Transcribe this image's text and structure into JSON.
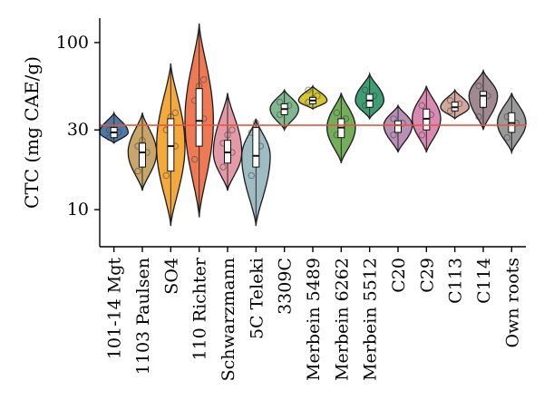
{
  "chart_data": {
    "type": "violin",
    "title": "",
    "xlabel": "",
    "ylabel": "CTC (mg CAE/g)",
    "y_scale": "log",
    "ylim": [
      6,
      140
    ],
    "y_ticks": [
      10,
      30,
      100
    ],
    "reference_line": {
      "value": 32,
      "color": "#e8573b"
    },
    "grid": false,
    "categories": [
      "101-14 Mgt",
      "1103 Paulsen",
      "SO4",
      "110 Richter",
      "Schwarzmann",
      "5C Teleki",
      "3309C",
      "Merbein 5489",
      "Merbein 6262",
      "Merbein 5512",
      "C20",
      "C29",
      "C113",
      "C114",
      "Own roots"
    ],
    "series": [
      {
        "category": "101-14 Mgt",
        "color": "#4e79a7",
        "ymin": 25,
        "ymax": 38,
        "median": 29,
        "q1": 27,
        "q3": 31,
        "points": [
          27,
          28,
          29,
          30,
          31
        ]
      },
      {
        "category": "1103 Paulsen",
        "color": "#c8a66a",
        "ymin": 13,
        "ymax": 38,
        "median": 22,
        "q1": 18,
        "q3": 25,
        "points": [
          17,
          19,
          22,
          24,
          26
        ]
      },
      {
        "category": "SO4",
        "color": "#f3a93b",
        "ymin": 8,
        "ymax": 75,
        "median": 24,
        "q1": 17,
        "q3": 35,
        "points": [
          16,
          18,
          24,
          30,
          36,
          38
        ]
      },
      {
        "category": "110 Richter",
        "color": "#ee7a55",
        "ymin": 9,
        "ymax": 130,
        "median": 34,
        "q1": 24,
        "q3": 53,
        "points": [
          20,
          25,
          35,
          45,
          55,
          60
        ]
      },
      {
        "category": "Schwarzmann",
        "color": "#e39aa6",
        "ymin": 13,
        "ymax": 50,
        "median": 22,
        "q1": 19,
        "q3": 26,
        "points": [
          18,
          20,
          22,
          25,
          28,
          30
        ]
      },
      {
        "category": "5C Teleki",
        "color": "#9ebcc2",
        "ymin": 8,
        "ymax": 35,
        "median": 21,
        "q1": 18,
        "q3": 31,
        "points": [
          16,
          20,
          24,
          29,
          33
        ]
      },
      {
        "category": "3309C",
        "color": "#7fb88f",
        "ymin": 30,
        "ymax": 52,
        "median": 40,
        "q1": 37,
        "q3": 43,
        "points": [
          37,
          40,
          42,
          44
        ]
      },
      {
        "category": "Merbein 5489",
        "color": "#d6c531",
        "ymin": 40,
        "ymax": 55,
        "median": 45,
        "q1": 43,
        "q3": 47,
        "points": [
          44,
          46,
          48,
          52
        ]
      },
      {
        "category": "Merbein 6262",
        "color": "#73ae5a",
        "ymin": 19,
        "ymax": 50,
        "median": 31,
        "q1": 27,
        "q3": 35,
        "points": [
          28,
          31,
          35,
          38
        ]
      },
      {
        "category": "Merbein 5512",
        "color": "#3d9e73",
        "ymin": 35,
        "ymax": 65,
        "median": 45,
        "q1": 41,
        "q3": 49,
        "points": [
          42,
          45,
          48,
          52
        ]
      },
      {
        "category": "C20",
        "color": "#b890b6",
        "ymin": 22,
        "ymax": 42,
        "median": 32,
        "q1": 29,
        "q3": 34,
        "points": [
          28,
          30,
          33,
          35
        ]
      },
      {
        "category": "C29",
        "color": "#d98ab2",
        "ymin": 22,
        "ymax": 55,
        "median": 35,
        "q1": 30,
        "q3": 40,
        "points": [
          28,
          33,
          37,
          42
        ]
      },
      {
        "category": "C113",
        "color": "#d2a79e",
        "ymin": 35,
        "ymax": 52,
        "median": 41,
        "q1": 39,
        "q3": 44,
        "points": [
          39,
          41,
          43,
          45
        ]
      },
      {
        "category": "C114",
        "color": "#a08a92",
        "ymin": 30,
        "ymax": 68,
        "median": 48,
        "q1": 41,
        "q3": 51,
        "points": [
          36,
          42,
          48,
          55
        ]
      },
      {
        "category": "Own roots",
        "color": "#9a9a9a",
        "ymin": 22,
        "ymax": 50,
        "median": 33,
        "q1": 29,
        "q3": 38,
        "points": [
          27,
          30,
          33,
          36
        ]
      }
    ]
  }
}
